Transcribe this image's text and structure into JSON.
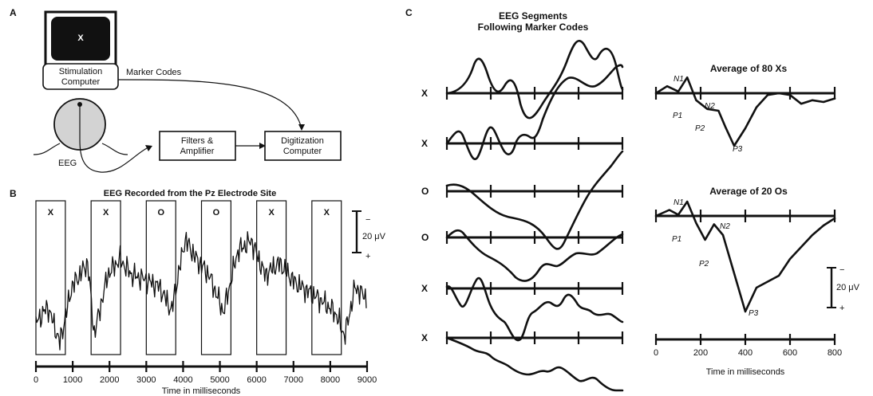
{
  "panels": {
    "a": {
      "label": "A",
      "screen_letter": "X",
      "stimulation_computer": "Stimulation Computer",
      "marker_codes": "Marker Codes",
      "eeg": "EEG",
      "filters_amplifier": "Filters & Amplifier",
      "digitization_computer": "Digitization Computer"
    },
    "b": {
      "label": "B",
      "title": "EEG Recorded from the Pz Electrode Site",
      "stimulus_labels": [
        "X",
        "X",
        "O",
        "O",
        "X",
        "X"
      ],
      "scale_label": "20 μV",
      "scale_minus": "−",
      "scale_plus": "+",
      "xlabel": "Time in milliseconds"
    },
    "c": {
      "label": "C",
      "title_line1": "EEG Segments",
      "title_line2": "Following Marker Codes",
      "segment_labels": [
        "X",
        "X",
        "O",
        "O",
        "X",
        "X"
      ],
      "avg_x_title": "Average of 80 Xs",
      "avg_o_title": "Average of 20 Os",
      "peaks_x": [
        "N1",
        "P1",
        "N2",
        "P2",
        "P3"
      ],
      "peaks_o": [
        "N1",
        "P1",
        "N2",
        "P2",
        "P3"
      ],
      "scale_label": "20 μV",
      "scale_minus": "−",
      "scale_plus": "+",
      "xlabel": "Time in milliseconds"
    }
  },
  "chart_data": [
    {
      "type": "line",
      "title": "EEG Recorded from the Pz Electrode Site",
      "xlabel": "Time in milliseconds",
      "ylabel": "",
      "xlim": [
        0,
        9000
      ],
      "x_ticks": [
        0,
        1000,
        2000,
        3000,
        4000,
        5000,
        6000,
        7000,
        8000,
        9000
      ],
      "stimulus_windows_ms": [
        [
          0,
          800
        ],
        [
          1500,
          2300
        ],
        [
          3000,
          3800
        ],
        [
          4500,
          5300
        ],
        [
          6000,
          6800
        ],
        [
          7500,
          8300
        ]
      ],
      "stimulus_labels": [
        "X",
        "X",
        "O",
        "O",
        "X",
        "X"
      ],
      "scale_bar_uV": 20
    },
    {
      "type": "line",
      "title": "Average of 80 Xs",
      "xlabel": "Time in milliseconds",
      "xlim": [
        0,
        800
      ],
      "x_ticks": [
        0,
        200,
        400,
        600,
        800
      ],
      "series": [
        {
          "name": "Average of 80 Xs",
          "x": [
            0,
            50,
            100,
            140,
            180,
            230,
            280,
            310,
            350,
            400,
            450,
            500,
            550,
            600,
            650,
            700,
            750,
            800
          ],
          "y": [
            0,
            4,
            1,
            9,
            -4,
            -9,
            -10,
            -19,
            -30,
            -20,
            -8,
            -1,
            0,
            -1,
            -6,
            -4,
            -5,
            -3
          ]
        }
      ]
    },
    {
      "type": "line",
      "title": "Average of 20 Os",
      "xlabel": "Time in milliseconds",
      "xlim": [
        0,
        800
      ],
      "x_ticks": [
        0,
        200,
        400,
        600,
        800
      ],
      "series": [
        {
          "name": "Average of 20 Os",
          "x": [
            0,
            60,
            100,
            140,
            180,
            220,
            260,
            300,
            350,
            400,
            450,
            500,
            550,
            600,
            650,
            700,
            750,
            800
          ],
          "y": [
            0,
            5,
            1,
            12,
            -6,
            -20,
            -7,
            -16,
            -48,
            -80,
            -60,
            -55,
            -50,
            -36,
            -26,
            -16,
            -8,
            -2
          ]
        }
      ]
    }
  ]
}
